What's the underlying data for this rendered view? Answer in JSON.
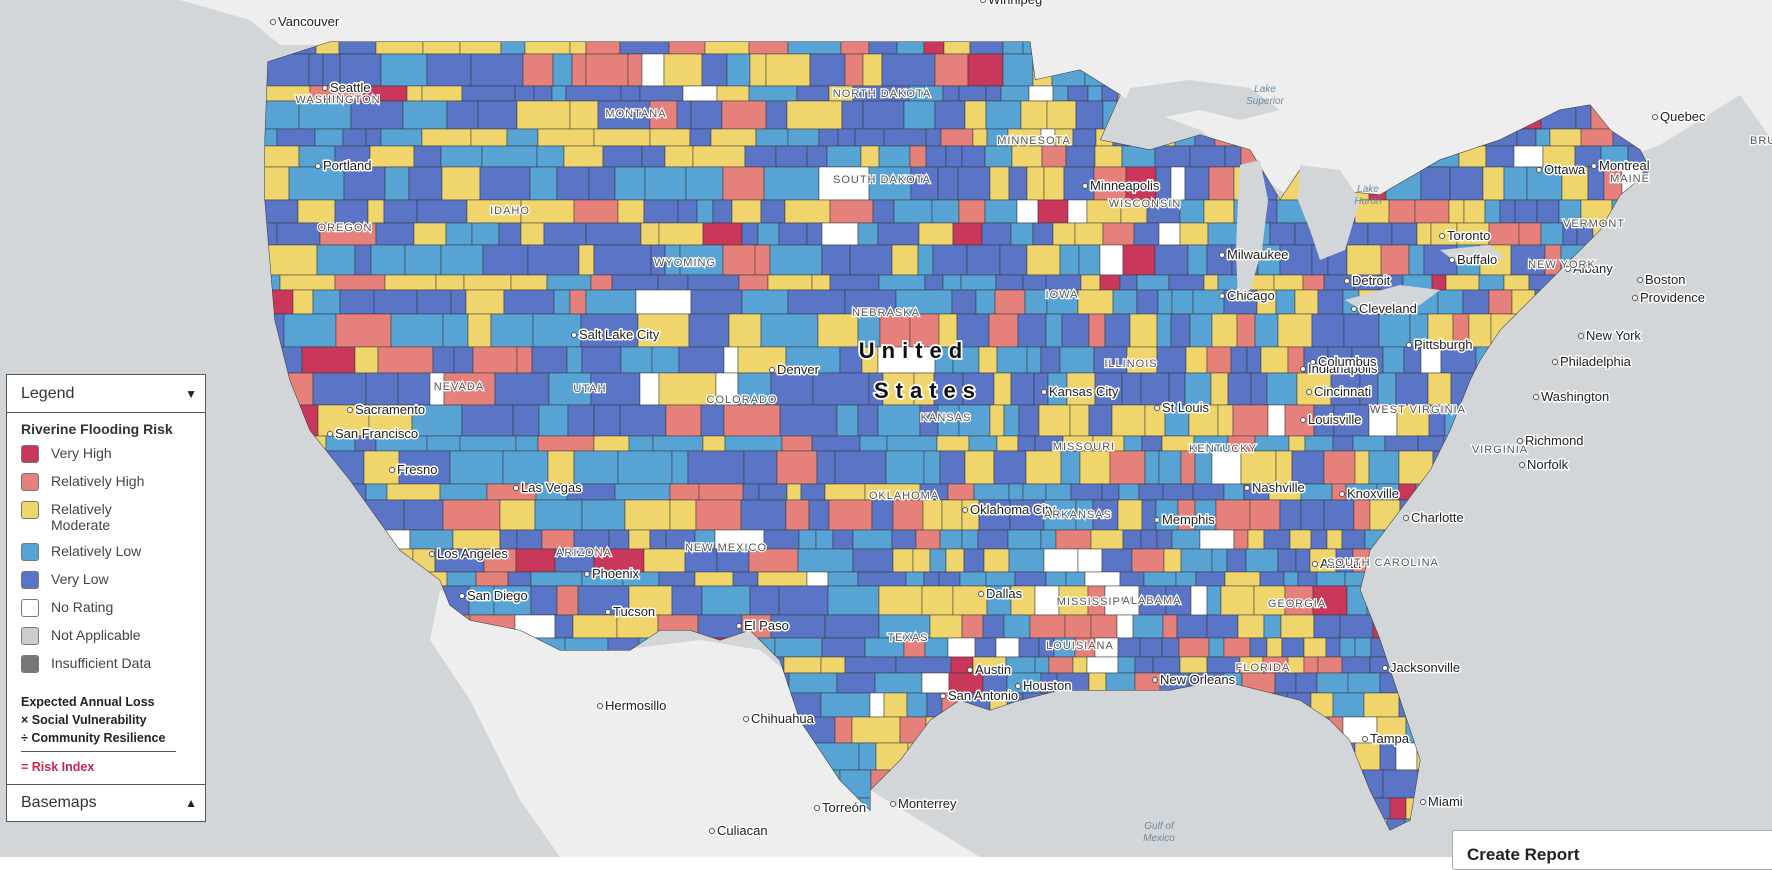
{
  "map": {
    "country_label": [
      "United",
      "States"
    ],
    "colors": {
      "very_high": "#c9385a",
      "relatively_high": "#e5817a",
      "relatively_moderate": "#f0d56c",
      "relatively_low": "#56a3d4",
      "very_low": "#5a74c6",
      "no_rating": "#ffffff",
      "not_applicable": "#cccccc",
      "insufficient_data": "#777777",
      "land": "#eeeeee",
      "water": "#d3d6d8"
    },
    "cities": [
      {
        "name": "Vancouver"
      },
      {
        "name": "Winnipeg"
      },
      {
        "name": "Seattle"
      },
      {
        "name": "Portland"
      },
      {
        "name": "Sacramento"
      },
      {
        "name": "San Francisco"
      },
      {
        "name": "Fresno"
      },
      {
        "name": "Los Angeles"
      },
      {
        "name": "San Diego"
      },
      {
        "name": "Las Vegas"
      },
      {
        "name": "Salt Lake City"
      },
      {
        "name": "Denver"
      },
      {
        "name": "Phoenix"
      },
      {
        "name": "Tucson"
      },
      {
        "name": "El Paso"
      },
      {
        "name": "Hermosillo"
      },
      {
        "name": "Chihuahua"
      },
      {
        "name": "Torreón"
      },
      {
        "name": "Monterrey"
      },
      {
        "name": "Culiacan"
      },
      {
        "name": "Oklahoma City"
      },
      {
        "name": "Dallas"
      },
      {
        "name": "Austin"
      },
      {
        "name": "San Antonio"
      },
      {
        "name": "Houston"
      },
      {
        "name": "New Orleans"
      },
      {
        "name": "Kansas City"
      },
      {
        "name": "St Louis"
      },
      {
        "name": "Memphis"
      },
      {
        "name": "Nashville"
      },
      {
        "name": "Minneapolis"
      },
      {
        "name": "Milwaukee"
      },
      {
        "name": "Chicago"
      },
      {
        "name": "Detroit"
      },
      {
        "name": "Indianapolis"
      },
      {
        "name": "Columbus"
      },
      {
        "name": "Cincinnati"
      },
      {
        "name": "Louisville"
      },
      {
        "name": "Knoxville"
      },
      {
        "name": "Atlanta"
      },
      {
        "name": "Charlotte"
      },
      {
        "name": "Jacksonville"
      },
      {
        "name": "Tampa"
      },
      {
        "name": "Miami"
      },
      {
        "name": "Cleveland"
      },
      {
        "name": "Pittsburgh"
      },
      {
        "name": "Toronto"
      },
      {
        "name": "Buffalo"
      },
      {
        "name": "Ottawa"
      },
      {
        "name": "Montreal"
      },
      {
        "name": "Quebec"
      },
      {
        "name": "Albany"
      },
      {
        "name": "Boston"
      },
      {
        "name": "Providence"
      },
      {
        "name": "New York"
      },
      {
        "name": "Philadelphia"
      },
      {
        "name": "Washington"
      },
      {
        "name": "Richmond"
      },
      {
        "name": "Norfolk"
      }
    ],
    "states": [
      {
        "name": "WASHINGTON"
      },
      {
        "name": "OREGON"
      },
      {
        "name": "IDAHO"
      },
      {
        "name": "MONTANA"
      },
      {
        "name": "WYOMING"
      },
      {
        "name": "NEVADA"
      },
      {
        "name": "UTAH"
      },
      {
        "name": "COLORADO"
      },
      {
        "name": "ARIZONA"
      },
      {
        "name": "NEW MEXICO"
      },
      {
        "name": "NORTH DAKOTA"
      },
      {
        "name": "SOUTH DAKOTA"
      },
      {
        "name": "NEBRASKA"
      },
      {
        "name": "KANSAS"
      },
      {
        "name": "OKLAHOMA"
      },
      {
        "name": "TEXAS"
      },
      {
        "name": "MINNESOTA"
      },
      {
        "name": "IOWA"
      },
      {
        "name": "MISSOURI"
      },
      {
        "name": "ARKANSAS"
      },
      {
        "name": "LOUISIANA"
      },
      {
        "name": "WISCONSIN"
      },
      {
        "name": "ILLINOIS"
      },
      {
        "name": "MISSISSIPPI"
      },
      {
        "name": "ALABAMA"
      },
      {
        "name": "KENTUCKY"
      },
      {
        "name": "GEORGIA"
      },
      {
        "name": "FLORIDA"
      },
      {
        "name": "SOUTH CAROLINA"
      },
      {
        "name": "VIRGINIA"
      },
      {
        "name": "WEST VIRGINIA"
      },
      {
        "name": "NEW YORK"
      },
      {
        "name": "VERMONT"
      },
      {
        "name": "MAINE"
      }
    ],
    "water": [
      {
        "name": "Lake Superior"
      },
      {
        "name": "Lake Huron"
      },
      {
        "name": "Gulf of Mexico"
      }
    ],
    "partial_label": "BRU"
  },
  "legend": {
    "header": "Legend",
    "title": "Riverine Flooding Risk",
    "items": [
      {
        "label": "Very High",
        "color": "#c9385a"
      },
      {
        "label": "Relatively High",
        "color": "#e5817a"
      },
      {
        "label": "Relatively Moderate",
        "color": "#f0d56c"
      },
      {
        "label": "Relatively Low",
        "color": "#56a3d4"
      },
      {
        "label": "Very Low",
        "color": "#5a74c6"
      },
      {
        "label": "No Rating",
        "color": "#ffffff"
      },
      {
        "label": "Not Applicable",
        "color": "#cccccc"
      },
      {
        "label": "Insufficient Data",
        "color": "#777777"
      }
    ],
    "formula": {
      "line1": "Expected Annual Loss",
      "line2": "× Social Vulnerability",
      "line3": "÷ Community Resilience",
      "result": "= Risk Index"
    },
    "basemaps": "Basemaps"
  },
  "create_report": "Create Report"
}
